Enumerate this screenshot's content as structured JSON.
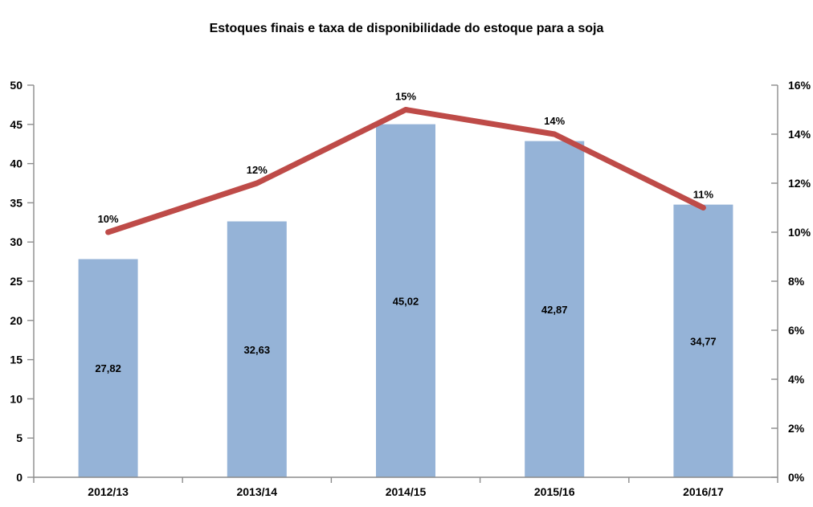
{
  "title": "Estoques finais e taxa de disponibilidade do estoque para a soja",
  "chart_data": {
    "type": "bar",
    "subtype": "combo-bar-line-dual-axis",
    "categories": [
      "2012/13",
      "2013/14",
      "2014/15",
      "2015/16",
      "2016/17"
    ],
    "series": [
      {
        "name": "Estoques finais",
        "type": "bar",
        "axis": "left",
        "values": [
          27.82,
          32.63,
          45.02,
          42.87,
          34.77
        ],
        "labels": [
          "27,82",
          "32,63",
          "45,02",
          "42,87",
          "34,77"
        ],
        "color": "#95B3D7"
      },
      {
        "name": "Taxa de disponibilidade do estoque",
        "type": "line",
        "axis": "right",
        "values": [
          10,
          12,
          15,
          14,
          11
        ],
        "labels": [
          "10%",
          "12%",
          "15%",
          "14%",
          "11%"
        ],
        "color": "#BE4B48"
      }
    ],
    "left_axis": {
      "min": 0,
      "max": 50,
      "step": 5,
      "tick_labels": [
        "0",
        "5",
        "10",
        "15",
        "20",
        "25",
        "30",
        "35",
        "40",
        "45",
        "50"
      ]
    },
    "right_axis": {
      "min": 0,
      "max": 16,
      "step": 2,
      "tick_labels": [
        "0%",
        "2%",
        "4%",
        "6%",
        "8%",
        "10%",
        "12%",
        "14%",
        "16%"
      ]
    },
    "grid": false,
    "legend": "none",
    "axis_color": "#8C8C8C",
    "text_color": "#000000",
    "background": "#FFFFFF"
  }
}
